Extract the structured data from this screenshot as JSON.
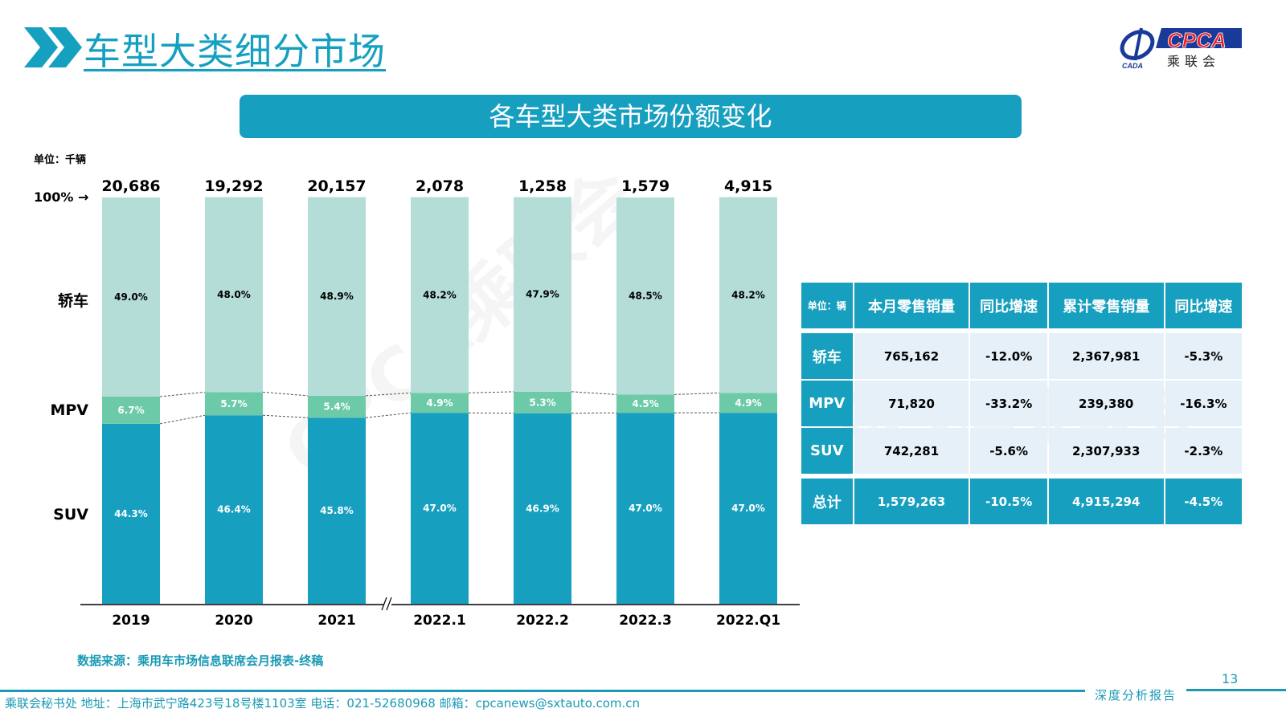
{
  "header": {
    "title": "车型大类细分市场",
    "banner": "各车型大类市场份额变化",
    "logo": {
      "text": "CPCA",
      "sub": "乘联会",
      "emblem": "CADA"
    }
  },
  "chart_data": {
    "type": "bar",
    "stacked": true,
    "normalized": true,
    "title": "各车型大类市场份额变化",
    "unit_label": "单位：千辆",
    "top_marker": "100% →",
    "categories": [
      "2019",
      "2020",
      "2021",
      "2022.1",
      "2022.2",
      "2022.3",
      "2022.Q1"
    ],
    "totals": [
      "20,686",
      "19,292",
      "20,157",
      "2,078",
      "1,258",
      "1,579",
      "4,915"
    ],
    "series": [
      {
        "name": "SUV",
        "color": "#169fbf",
        "values": [
          44.3,
          46.4,
          45.8,
          47.0,
          46.9,
          47.0,
          47.0
        ]
      },
      {
        "name": "MPV",
        "color": "#6ccaa8",
        "values": [
          6.7,
          5.7,
          5.4,
          4.9,
          5.3,
          4.5,
          4.9
        ]
      },
      {
        "name": "轿车",
        "color": "#b3ddd6",
        "values": [
          49.0,
          48.0,
          48.9,
          48.2,
          47.9,
          48.5,
          48.2
        ]
      }
    ],
    "series_labels": [
      "轿车",
      "MPV",
      "SUV"
    ],
    "axis_break_after": "2021",
    "ylim": [
      0,
      100
    ]
  },
  "table": {
    "headers": [
      "单位：辆",
      "本月零售销量",
      "同比增速",
      "累计零售销量",
      "同比增速"
    ],
    "rows": [
      [
        "轿车",
        "765,162",
        "-12.0%",
        "2,367,981",
        "-5.3%"
      ],
      [
        "MPV",
        "71,820",
        "-33.2%",
        "239,380",
        "-16.3%"
      ],
      [
        "SUV",
        "742,281",
        "-5.6%",
        "2,307,933",
        "-2.3%"
      ]
    ],
    "total": [
      "总计",
      "1,579,263",
      "-10.5%",
      "4,915,294",
      "-4.5%"
    ]
  },
  "watermark": "CPCA乘联会",
  "source": "数据来源：乘用车市场信息联席会月报表-终稿",
  "footer": "乘联会秘书处   地址：上海市武宁路423号18号楼1103室  电话：021-52680968   邮箱：cpcanews@sxtauto.com.cn",
  "page_number": "13",
  "report_tag": "深度分析报告"
}
